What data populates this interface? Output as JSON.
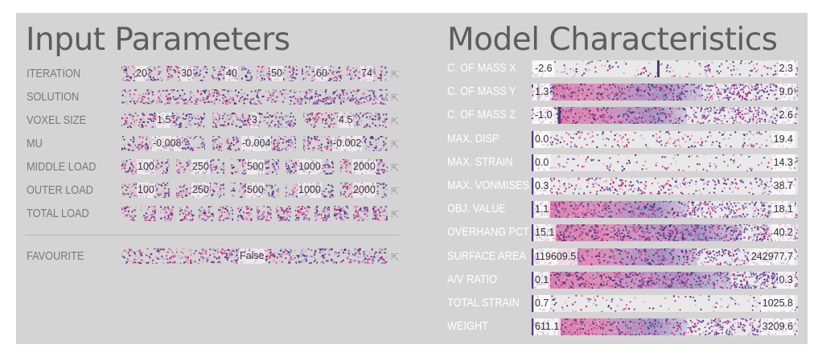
{
  "input_parameters": {
    "title": "Input Parameters",
    "iteration": {
      "label": "ITERATION",
      "values": [
        "20",
        "30",
        "40",
        "50",
        "60",
        "74"
      ]
    },
    "solution": {
      "label": "SOLUTION"
    },
    "voxel_size": {
      "label": "VOXEL SIZE",
      "values": [
        "1.5",
        "3",
        "4.5"
      ]
    },
    "mu": {
      "label": "MU",
      "values": [
        "-0.008",
        "-0.004",
        "-0.002"
      ]
    },
    "middle_load": {
      "label": "MIDDLE LOAD",
      "values": [
        "100",
        "250",
        "500",
        "1000",
        "2000"
      ]
    },
    "outer_load": {
      "label": "OUTER LOAD",
      "values": [
        "100",
        "250",
        "500",
        "1000",
        "2000"
      ]
    },
    "total_load": {
      "label": "TOTAL LOAD"
    },
    "favourite": {
      "label": "FAVOURITE",
      "value": "False"
    },
    "link_icon": "external-link-icon"
  },
  "model_characteristics": {
    "title": "Model Characteristics",
    "rows": [
      {
        "label": "C. OF MASS X",
        "min": "-2.6",
        "max": "2.3",
        "marker": 0.48,
        "density": 0.2
      },
      {
        "label": "C. OF MASS Y",
        "min": "1.3",
        "max": "9.0",
        "marker": 0.02,
        "density": 0.75
      },
      {
        "label": "C. OF MASS Z",
        "min": "-1.0",
        "max": "2.6",
        "marker": 0.1,
        "density": 0.65
      },
      {
        "label": "MAX. DISP",
        "min": "0.0",
        "max": "19.4",
        "marker": 0.0,
        "density": 0.25
      },
      {
        "label": "MAX. STRAIN",
        "min": "0.0",
        "max": "14.3",
        "marker": 0.0,
        "density": 0.15
      },
      {
        "label": "MAX. VONMISES",
        "min": "0.3",
        "max": "38.7",
        "marker": 0.0,
        "density": 0.35
      },
      {
        "label": "OBJ. VALUE",
        "min": "1.1",
        "max": "18.1",
        "marker": 0.0,
        "density": 0.7
      },
      {
        "label": "OVERHANG PCT",
        "min": "15.1",
        "max": "40.2",
        "marker": 0.0,
        "density": 0.95
      },
      {
        "label": "SURFACE AREA",
        "min": "119609.5",
        "max": "242977.7",
        "marker": 0.0,
        "density": 0.7
      },
      {
        "label": "A/V RATIO",
        "min": "0.1",
        "max": "0.3",
        "marker": 0.0,
        "density": 0.92
      },
      {
        "label": "TOTAL STRAIN",
        "min": "0.7",
        "max": "1025.8",
        "marker": 0.0,
        "density": 0.15
      },
      {
        "label": "WEIGHT",
        "min": "611.1",
        "max": "3209.6",
        "marker": 0.0,
        "density": 0.65
      }
    ]
  },
  "colors": {
    "panel_bg": "#d4d4d4",
    "pink": "#d6488e",
    "magenta": "#c8287a",
    "purple": "#5a3f8f",
    "lavender": "#b9a8d2",
    "text_label": "#7a7a7a",
    "title": "#5d5d5d"
  }
}
